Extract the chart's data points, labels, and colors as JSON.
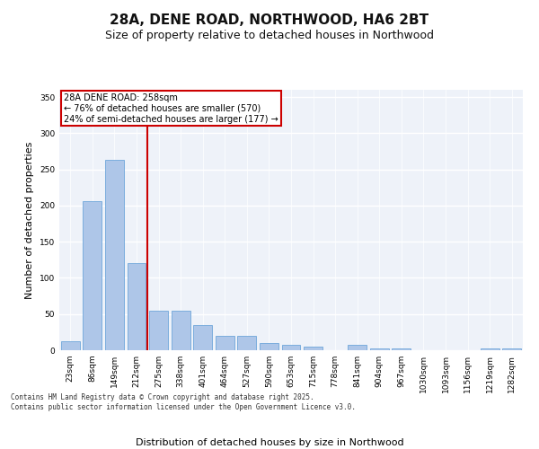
{
  "title_line1": "28A, DENE ROAD, NORTHWOOD, HA6 2BT",
  "title_line2": "Size of property relative to detached houses in Northwood",
  "xlabel": "Distribution of detached houses by size in Northwood",
  "ylabel": "Number of detached properties",
  "categories": [
    "23sqm",
    "86sqm",
    "149sqm",
    "212sqm",
    "275sqm",
    "338sqm",
    "401sqm",
    "464sqm",
    "527sqm",
    "590sqm",
    "653sqm",
    "715sqm",
    "778sqm",
    "841sqm",
    "904sqm",
    "967sqm",
    "1030sqm",
    "1093sqm",
    "1156sqm",
    "1219sqm",
    "1282sqm"
  ],
  "values": [
    12,
    206,
    263,
    120,
    55,
    55,
    35,
    20,
    20,
    10,
    7,
    5,
    0,
    8,
    3,
    3,
    0,
    0,
    0,
    2,
    3
  ],
  "bar_color": "#aec6e8",
  "bar_edgecolor": "#5b9bd5",
  "background_color": "#eef2f9",
  "grid_color": "#ffffff",
  "vline_x": 3.5,
  "vline_color": "#cc0000",
  "annotation_text": "28A DENE ROAD: 258sqm\n← 76% of detached houses are smaller (570)\n24% of semi-detached houses are larger (177) →",
  "annotation_box_color": "#cc0000",
  "ylim": [
    0,
    360
  ],
  "yticks": [
    0,
    50,
    100,
    150,
    200,
    250,
    300,
    350
  ],
  "footer": "Contains HM Land Registry data © Crown copyright and database right 2025.\nContains public sector information licensed under the Open Government Licence v3.0.",
  "title_fontsize": 11,
  "subtitle_fontsize": 9,
  "tick_fontsize": 6.5,
  "label_fontsize": 8
}
